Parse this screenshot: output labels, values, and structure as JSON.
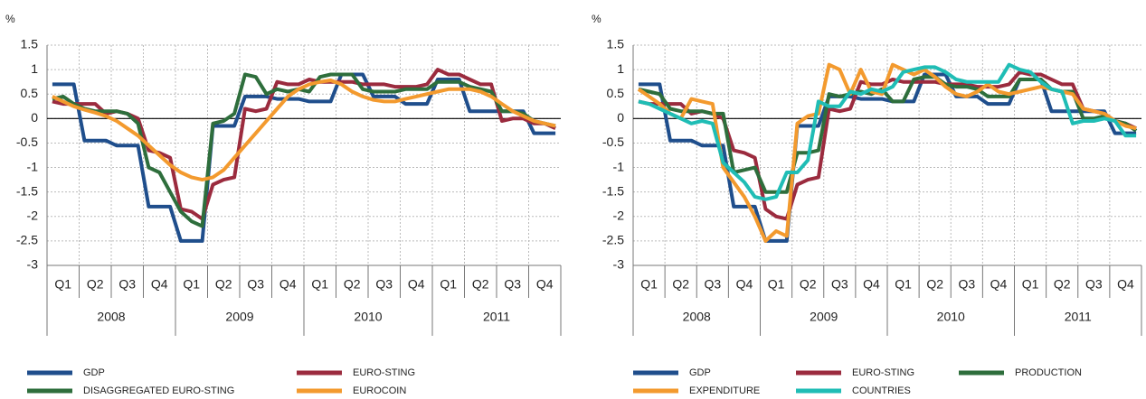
{
  "chart_data": [
    {
      "type": "line",
      "y_unit": "%",
      "x": [
        0.5,
        1.5,
        2.5,
        3.5,
        4.5,
        5.5,
        6.5,
        7.5,
        8.5,
        9.5,
        10.5,
        11.5,
        12.5,
        13.5,
        14.5,
        15.5,
        16.5,
        17.5,
        18.5,
        19.5,
        20.5,
        21.5,
        22.5,
        23.5,
        24.5,
        25.5,
        26.5,
        27.5,
        28.5,
        29.5,
        30.5,
        31.5,
        32.5,
        33.5,
        34.5,
        35.5,
        36.5,
        37.5,
        38.5,
        39.5,
        40.5,
        41.5,
        42.5,
        43.5,
        44.5,
        45.5,
        46.5,
        47.5
      ],
      "xlim": [
        0,
        48
      ],
      "xticks": [
        {
          "value": 1.5,
          "label": "Q1"
        },
        {
          "value": 4.5,
          "label": "Q2"
        },
        {
          "value": 7.5,
          "label": "Q3"
        },
        {
          "value": 10.5,
          "label": "Q4"
        },
        {
          "value": 13.5,
          "label": "Q1"
        },
        {
          "value": 16.5,
          "label": "Q2"
        },
        {
          "value": 19.5,
          "label": "Q3"
        },
        {
          "value": 22.5,
          "label": "Q4"
        },
        {
          "value": 25.5,
          "label": "Q1"
        },
        {
          "value": 28.5,
          "label": "Q2"
        },
        {
          "value": 31.5,
          "label": "Q3"
        },
        {
          "value": 34.5,
          "label": "Q4"
        },
        {
          "value": 37.5,
          "label": "Q1"
        },
        {
          "value": 40.5,
          "label": "Q2"
        },
        {
          "value": 43.5,
          "label": "Q3"
        },
        {
          "value": 46.5,
          "label": "Q4"
        }
      ],
      "year_labels": [
        {
          "value": 6,
          "label": "2008"
        },
        {
          "value": 18,
          "label": "2009"
        },
        {
          "value": 30,
          "label": "2010"
        },
        {
          "value": 42,
          "label": "2011"
        }
      ],
      "ylim": [
        -3,
        1.5
      ],
      "yticks": [
        1.5,
        1,
        0.5,
        0,
        -0.5,
        -1,
        -1.5,
        -2,
        -2.5,
        -3
      ],
      "grid": true,
      "legend_columns": 2,
      "series": [
        {
          "name": "GDP",
          "color": "#1f4e8c",
          "values": [
            0.7,
            0.7,
            0.7,
            -0.45,
            -0.45,
            -0.45,
            -0.55,
            -0.55,
            -0.55,
            -1.8,
            -1.8,
            -1.8,
            -2.5,
            -2.5,
            -2.5,
            -0.15,
            -0.15,
            -0.15,
            0.45,
            0.45,
            0.45,
            0.4,
            0.4,
            0.4,
            0.35,
            0.35,
            0.35,
            0.9,
            0.9,
            0.9,
            0.45,
            0.45,
            0.45,
            0.3,
            0.3,
            0.3,
            0.8,
            0.8,
            0.8,
            0.15,
            0.15,
            0.15,
            0.15,
            0.15,
            0.15,
            -0.3,
            -0.3,
            -0.3
          ]
        },
        {
          "name": "EURO-STING",
          "color": "#9b2b3e",
          "values": [
            0.35,
            0.3,
            0.3,
            0.3,
            0.3,
            0.1,
            0.15,
            0.1,
            0.0,
            -0.65,
            -0.7,
            -0.8,
            -1.85,
            -1.9,
            -2.05,
            -1.35,
            -1.25,
            -1.2,
            0.2,
            0.15,
            0.2,
            0.75,
            0.7,
            0.7,
            0.8,
            0.75,
            0.75,
            0.75,
            0.75,
            0.7,
            0.7,
            0.7,
            0.65,
            0.65,
            0.65,
            0.7,
            1.0,
            0.9,
            0.9,
            0.8,
            0.7,
            0.7,
            -0.05,
            0.0,
            0.0,
            -0.1,
            -0.1,
            -0.2
          ]
        },
        {
          "name": "DISAGGREGATED EURO-STING",
          "color": "#2e6e3c",
          "values": [
            0.4,
            0.45,
            0.3,
            0.2,
            0.15,
            0.15,
            0.15,
            0.1,
            -0.1,
            -1.0,
            -1.1,
            -1.5,
            -1.9,
            -2.1,
            -2.2,
            -0.1,
            -0.05,
            0.1,
            0.9,
            0.85,
            0.5,
            0.6,
            0.55,
            0.6,
            0.55,
            0.85,
            0.9,
            0.9,
            0.9,
            0.6,
            0.55,
            0.55,
            0.55,
            0.6,
            0.6,
            0.6,
            0.75,
            0.75,
            0.75,
            0.65,
            0.6,
            0.55,
            0.15,
            0.15,
            0.1,
            -0.05,
            -0.1,
            -0.15
          ]
        },
        {
          "name": "EUROCOIN",
          "color": "#f39a2e",
          "values": [
            0.45,
            0.35,
            0.25,
            0.18,
            0.12,
            0.05,
            -0.05,
            -0.2,
            -0.35,
            -0.55,
            -0.75,
            -0.95,
            -1.1,
            -1.2,
            -1.25,
            -1.2,
            -1.05,
            -0.8,
            -0.55,
            -0.3,
            -0.05,
            0.2,
            0.45,
            0.6,
            0.7,
            0.75,
            0.78,
            0.7,
            0.55,
            0.45,
            0.38,
            0.35,
            0.35,
            0.4,
            0.45,
            0.5,
            0.55,
            0.6,
            0.6,
            0.6,
            0.55,
            0.45,
            0.3,
            0.15,
            0.05,
            -0.05,
            -0.1,
            -0.15
          ]
        }
      ]
    },
    {
      "type": "line",
      "y_unit": "%",
      "x": [
        0.5,
        1.5,
        2.5,
        3.5,
        4.5,
        5.5,
        6.5,
        7.5,
        8.5,
        9.5,
        10.5,
        11.5,
        12.5,
        13.5,
        14.5,
        15.5,
        16.5,
        17.5,
        18.5,
        19.5,
        20.5,
        21.5,
        22.5,
        23.5,
        24.5,
        25.5,
        26.5,
        27.5,
        28.5,
        29.5,
        30.5,
        31.5,
        32.5,
        33.5,
        34.5,
        35.5,
        36.5,
        37.5,
        38.5,
        39.5,
        40.5,
        41.5,
        42.5,
        43.5,
        44.5,
        45.5,
        46.5,
        47.5
      ],
      "xlim": [
        0,
        48
      ],
      "xticks": [
        {
          "value": 1.5,
          "label": "Q1"
        },
        {
          "value": 4.5,
          "label": "Q2"
        },
        {
          "value": 7.5,
          "label": "Q3"
        },
        {
          "value": 10.5,
          "label": "Q4"
        },
        {
          "value": 13.5,
          "label": "Q1"
        },
        {
          "value": 16.5,
          "label": "Q2"
        },
        {
          "value": 19.5,
          "label": "Q3"
        },
        {
          "value": 22.5,
          "label": "Q4"
        },
        {
          "value": 25.5,
          "label": "Q1"
        },
        {
          "value": 28.5,
          "label": "Q2"
        },
        {
          "value": 31.5,
          "label": "Q3"
        },
        {
          "value": 34.5,
          "label": "Q4"
        },
        {
          "value": 37.5,
          "label": "Q1"
        },
        {
          "value": 40.5,
          "label": "Q2"
        },
        {
          "value": 43.5,
          "label": "Q3"
        },
        {
          "value": 46.5,
          "label": "Q4"
        }
      ],
      "year_labels": [
        {
          "value": 6,
          "label": "2008"
        },
        {
          "value": 18,
          "label": "2009"
        },
        {
          "value": 30,
          "label": "2010"
        },
        {
          "value": 42,
          "label": "2011"
        }
      ],
      "ylim": [
        -3,
        1.5
      ],
      "yticks": [
        1.5,
        1,
        0.5,
        0,
        -0.5,
        -1,
        -1.5,
        -2,
        -2.5,
        -3
      ],
      "grid": true,
      "legend_columns": 3,
      "series": [
        {
          "name": "GDP",
          "color": "#1f4e8c",
          "values": [
            0.7,
            0.7,
            0.7,
            -0.45,
            -0.45,
            -0.45,
            -0.55,
            -0.55,
            -0.55,
            -1.8,
            -1.8,
            -1.8,
            -2.5,
            -2.5,
            -2.5,
            -0.15,
            -0.15,
            -0.15,
            0.45,
            0.45,
            0.45,
            0.4,
            0.4,
            0.4,
            0.35,
            0.35,
            0.35,
            0.9,
            0.9,
            0.9,
            0.45,
            0.45,
            0.45,
            0.3,
            0.3,
            0.3,
            0.8,
            0.8,
            0.8,
            0.15,
            0.15,
            0.15,
            0.15,
            0.15,
            0.15,
            -0.3,
            -0.3,
            -0.3
          ]
        },
        {
          "name": "EURO-STING",
          "color": "#9b2b3e",
          "values": [
            0.35,
            0.3,
            0.3,
            0.3,
            0.3,
            0.1,
            0.15,
            0.1,
            0.0,
            -0.65,
            -0.7,
            -0.8,
            -1.85,
            -2.0,
            -2.05,
            -1.35,
            -1.25,
            -1.2,
            0.2,
            0.15,
            0.2,
            0.75,
            0.7,
            0.7,
            0.8,
            0.75,
            0.75,
            0.75,
            0.75,
            0.7,
            0.7,
            0.7,
            0.65,
            0.65,
            0.65,
            0.7,
            0.95,
            0.9,
            0.9,
            0.8,
            0.7,
            0.7,
            0.2,
            0.15,
            0.1,
            -0.05,
            -0.1,
            -0.2
          ]
        },
        {
          "name": "PRODUCTION",
          "color": "#2e6e3c",
          "values": [
            0.6,
            0.55,
            0.5,
            0.2,
            0.15,
            0.15,
            0.15,
            0.1,
            0.1,
            -1.1,
            -1.05,
            -1.0,
            -1.5,
            -1.5,
            -1.5,
            -0.7,
            -0.7,
            -0.65,
            0.5,
            0.45,
            0.5,
            0.55,
            0.5,
            0.6,
            0.35,
            0.35,
            0.8,
            0.85,
            0.85,
            0.7,
            0.65,
            0.65,
            0.6,
            0.45,
            0.45,
            0.45,
            0.8,
            0.8,
            0.8,
            0.6,
            0.55,
            0.55,
            0.0,
            0.0,
            0.05,
            -0.05,
            -0.1,
            -0.25
          ]
        },
        {
          "name": "EXPENDITURE",
          "color": "#f39a2e",
          "values": [
            0.6,
            0.45,
            0.3,
            0.1,
            0.0,
            0.4,
            0.35,
            0.3,
            -1.0,
            -1.3,
            -1.6,
            -2.0,
            -2.5,
            -2.3,
            -2.4,
            -0.1,
            0.05,
            0.1,
            1.1,
            1.0,
            0.5,
            1.0,
            0.55,
            0.5,
            1.1,
            1.0,
            0.9,
            1.0,
            0.85,
            0.65,
            0.5,
            0.45,
            0.55,
            0.7,
            0.55,
            0.5,
            0.55,
            0.6,
            0.65,
            0.6,
            0.55,
            0.5,
            0.2,
            0.15,
            0.1,
            -0.05,
            -0.15,
            -0.2
          ]
        },
        {
          "name": "COUNTRIES",
          "color": "#1fbdb5",
          "values": [
            0.35,
            0.3,
            0.2,
            0.1,
            0.0,
            -0.1,
            -0.05,
            -0.1,
            -0.9,
            -1.1,
            -1.3,
            -1.6,
            -1.65,
            -1.6,
            -1.1,
            -1.1,
            -0.85,
            0.35,
            0.25,
            0.25,
            0.55,
            0.5,
            0.6,
            0.55,
            0.65,
            0.95,
            1.0,
            1.05,
            1.05,
            0.95,
            0.8,
            0.75,
            0.75,
            0.75,
            0.75,
            1.1,
            1.0,
            0.95,
            0.75,
            0.6,
            0.55,
            -0.1,
            -0.05,
            -0.05,
            0.0,
            -0.05,
            -0.35,
            -0.35
          ]
        }
      ]
    }
  ]
}
